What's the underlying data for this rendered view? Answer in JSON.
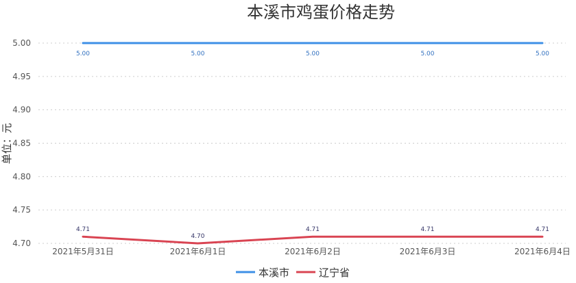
{
  "chart_data": {
    "type": "line",
    "title": "本溪市鸡蛋价格走势",
    "ylabel": "单位：元",
    "xlabel": "",
    "categories": [
      "2021年5月31日",
      "2021年6月1日",
      "2021年6月2日",
      "2021年6月3日",
      "2021年6月4日"
    ],
    "ylim": [
      4.7,
      5.0
    ],
    "yticks": [
      "4.70",
      "4.75",
      "4.80",
      "4.85",
      "4.90",
      "4.95",
      "5.00"
    ],
    "grid": true,
    "legend_position": "bottom-center",
    "series": [
      {
        "name": "本溪市",
        "color": "#3d8fe6",
        "values": [
          5.0,
          5.0,
          5.0,
          5.0,
          5.0
        ],
        "labels": [
          "5.00",
          "5.00",
          "5.00",
          "5.00",
          "5.00"
        ]
      },
      {
        "name": "辽宁省",
        "color": "#d94452",
        "values": [
          4.71,
          4.7,
          4.71,
          4.71,
          4.71
        ],
        "labels": [
          "4.71",
          "4.70",
          "4.71",
          "4.71",
          "4.71"
        ]
      }
    ]
  }
}
